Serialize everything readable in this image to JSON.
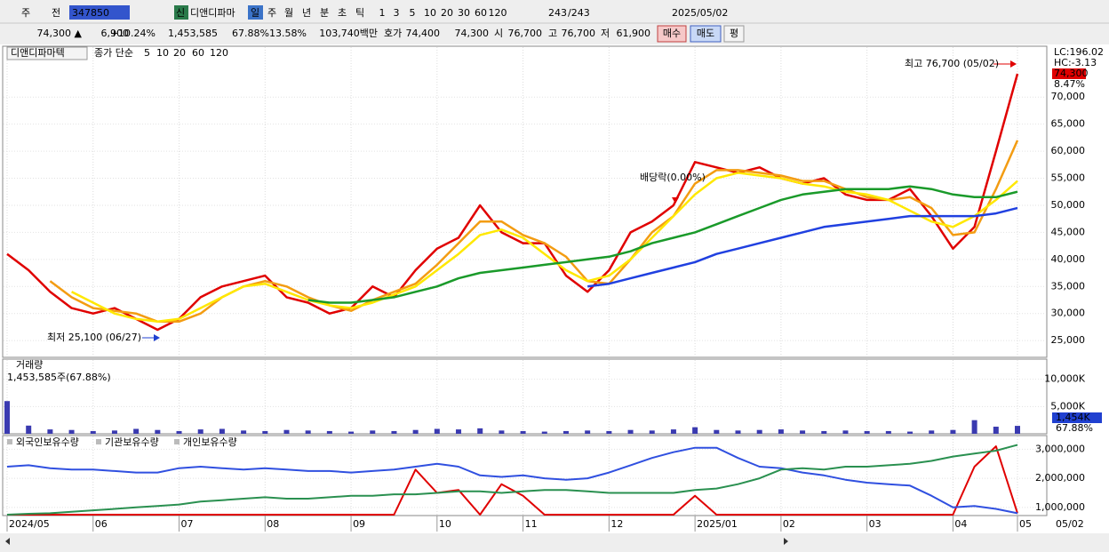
{
  "toolbar": {
    "market": "주",
    "range": "전",
    "code": "347850",
    "new": "신",
    "name": "디앤디파마",
    "periods": [
      "일",
      "주",
      "월",
      "년",
      "분",
      "초",
      "틱"
    ],
    "intervals": [
      "1",
      "3",
      "5",
      "10",
      "20",
      "30",
      "60",
      "120"
    ],
    "count": "243",
    "total": "/243",
    "date": "2025/05/02"
  },
  "quote": {
    "price": "74,300 ▲",
    "change": "6,900",
    "rate": "+10.24%",
    "volume": "1,453,585",
    "volume_rate": "67.88%",
    "turnover": "13.58%",
    "amount": "103,740백만",
    "ask_label": "호가",
    "ask": "74,400",
    "bid": "74,300",
    "open_label": "시",
    "open": "76,700",
    "high_label": "고",
    "high": "76,700",
    "low_label": "저",
    "low": "61,900",
    "buy": "매수",
    "sell": "매도",
    "avg": "평"
  },
  "chart_data": [
    {
      "type": "line",
      "title": "디앤디파마텍",
      "legend_title": "종가 단순",
      "series": [
        {
          "name": "5",
          "color": "#e00000",
          "values": [
            41000,
            38000,
            34000,
            31000,
            30000,
            31000,
            29000,
            27000,
            29000,
            33000,
            35000,
            36000,
            37000,
            33000,
            32000,
            30000,
            31000,
            35000,
            33000,
            38000,
            42000,
            44000,
            50000,
            45000,
            43000,
            43000,
            37000,
            34000,
            38000,
            45000,
            47000,
            50000,
            58000,
            57000,
            56000,
            57000,
            55000,
            54000,
            55000,
            52000,
            51000,
            51000,
            53000,
            48000,
            42000,
            46000,
            60000,
            74300
          ]
        },
        {
          "name": "10",
          "color": "#f39c12",
          "values": [
            null,
            null,
            36000,
            33000,
            31000,
            30500,
            30000,
            28500,
            28500,
            30000,
            33000,
            35000,
            36000,
            35000,
            33000,
            31500,
            30500,
            32500,
            34000,
            35500,
            39000,
            43000,
            47000,
            47000,
            44500,
            43000,
            40500,
            36000,
            35500,
            40000,
            45000,
            48000,
            54000,
            56500,
            56500,
            56000,
            55500,
            54500,
            54500,
            53000,
            51500,
            51000,
            51500,
            49500,
            44500,
            45000,
            53000,
            62000
          ]
        },
        {
          "name": "20",
          "color": "#ffe800",
          "values": [
            null,
            null,
            null,
            34000,
            32000,
            30000,
            29000,
            28500,
            29000,
            31000,
            33000,
            35000,
            35500,
            34000,
            32500,
            31500,
            31000,
            32000,
            33500,
            35000,
            38000,
            41000,
            44500,
            45500,
            44000,
            41000,
            38000,
            36000,
            37000,
            40000,
            44000,
            48000,
            52000,
            55000,
            56000,
            55500,
            55000,
            54000,
            53500,
            52500,
            52000,
            51000,
            49000,
            47000,
            46000,
            48000,
            51000,
            54500
          ]
        },
        {
          "name": "60",
          "color": "#1a9a2a",
          "values": [
            null,
            null,
            null,
            null,
            null,
            null,
            null,
            null,
            null,
            null,
            null,
            null,
            null,
            null,
            32500,
            32000,
            32000,
            32500,
            33000,
            34000,
            35000,
            36500,
            37500,
            38000,
            38500,
            39000,
            39500,
            40000,
            40500,
            41500,
            43000,
            44000,
            45000,
            46500,
            48000,
            49500,
            51000,
            52000,
            52500,
            53000,
            53000,
            53000,
            53500,
            53000,
            52000,
            51500,
            51500,
            52500
          ]
        },
        {
          "name": "120",
          "color": "#2040e0",
          "values": [
            null,
            null,
            null,
            null,
            null,
            null,
            null,
            null,
            null,
            null,
            null,
            null,
            null,
            null,
            null,
            null,
            null,
            null,
            null,
            null,
            null,
            null,
            null,
            null,
            null,
            null,
            null,
            35000,
            35500,
            36500,
            37500,
            38500,
            39500,
            41000,
            42000,
            43000,
            44000,
            45000,
            46000,
            46500,
            47000,
            47500,
            48000,
            48000,
            48000,
            48000,
            48500,
            49500
          ]
        }
      ],
      "ylim": [
        21900,
        79400
      ],
      "yticks": [
        {
          "value": 25000,
          "label": "25,000"
        },
        {
          "value": 30000,
          "label": "30,000"
        },
        {
          "value": 35000,
          "label": "35,000"
        },
        {
          "value": 40000,
          "label": "40,000"
        },
        {
          "value": 45000,
          "label": "45,000"
        },
        {
          "value": 50000,
          "label": "50,000"
        },
        {
          "value": 55000,
          "label": "55,000"
        },
        {
          "value": 60000,
          "label": "60,000"
        },
        {
          "value": 65000,
          "label": "65,000"
        },
        {
          "value": 70000,
          "label": "70,000"
        }
      ],
      "annotations": [
        "최고 76,700 (05/02)",
        "최저 25,100 (06/27)",
        "배당락(0.00%)"
      ],
      "indicators": [
        "LC:196.02",
        "HC:-3.13",
        "74,300",
        "8.47%"
      ]
    },
    {
      "type": "bar",
      "title": "거래량",
      "subtitle": "1,453,585주(67.88%)",
      "color": "#3a3ab0",
      "values": [
        6000,
        1500,
        800,
        700,
        500,
        600,
        900,
        700,
        500,
        800,
        900,
        600,
        500,
        700,
        600,
        500,
        400,
        600,
        500,
        700,
        900,
        800,
        1000,
        600,
        500,
        400,
        500,
        600,
        500,
        700,
        600,
        800,
        1200,
        700,
        600,
        700,
        800,
        600,
        500,
        600,
        500,
        500,
        400,
        600,
        700,
        2500,
        1300,
        1454
      ],
      "ylim": [
        0,
        13700
      ],
      "yticks": [
        {
          "value": 5000,
          "label": "5,000K"
        },
        {
          "value": 10000,
          "label": "10,000K"
        }
      ],
      "current": "1,454K",
      "current_rate": "67.88%"
    },
    {
      "type": "line",
      "categories": [
        "2024/05",
        null,
        null,
        null,
        "06",
        null,
        null,
        null,
        "07",
        null,
        null,
        null,
        "08",
        null,
        null,
        null,
        "09",
        null,
        null,
        null,
        "10",
        null,
        null,
        null,
        "11",
        null,
        null,
        null,
        "12",
        null,
        null,
        null,
        "2025/01",
        null,
        null,
        null,
        "02",
        null,
        null,
        null,
        "03",
        null,
        null,
        null,
        "04",
        null,
        null,
        "05"
      ],
      "series": [
        {
          "name": "외국인보유수량",
          "color": "#e00000",
          "values": [
            750000,
            750000,
            750000,
            750000,
            750000,
            750000,
            750000,
            750000,
            750000,
            750000,
            750000,
            750000,
            750000,
            750000,
            750000,
            750000,
            750000,
            750000,
            750000,
            2300000,
            1500000,
            1600000,
            750000,
            1800000,
            1400000,
            750000,
            750000,
            750000,
            750000,
            750000,
            750000,
            750000,
            1400000,
            750000,
            750000,
            750000,
            750000,
            750000,
            750000,
            750000,
            750000,
            750000,
            750000,
            750000,
            750000,
            2400000,
            3100000,
            800000
          ]
        },
        {
          "name": "기관보유수량",
          "color": "#3050e0",
          "values": [
            2400000,
            2450000,
            2350000,
            2300000,
            2300000,
            2250000,
            2200000,
            2200000,
            2350000,
            2400000,
            2350000,
            2300000,
            2350000,
            2300000,
            2250000,
            2250000,
            2200000,
            2250000,
            2300000,
            2400000,
            2500000,
            2400000,
            2100000,
            2050000,
            2100000,
            2000000,
            1950000,
            2000000,
            2200000,
            2450000,
            2700000,
            2900000,
            3050000,
            3050000,
            2700000,
            2400000,
            2350000,
            2200000,
            2100000,
            1950000,
            1850000,
            1800000,
            1750000,
            1400000,
            1000000,
            1050000,
            950000,
            800000
          ]
        },
        {
          "name": "개인보유수량",
          "color": "#2a9050",
          "values": [
            750000,
            780000,
            800000,
            850000,
            900000,
            950000,
            1000000,
            1050000,
            1100000,
            1200000,
            1250000,
            1300000,
            1350000,
            1300000,
            1300000,
            1350000,
            1400000,
            1400000,
            1450000,
            1450000,
            1500000,
            1550000,
            1550000,
            1500000,
            1550000,
            1600000,
            1600000,
            1550000,
            1500000,
            1500000,
            1500000,
            1500000,
            1600000,
            1650000,
            1800000,
            2000000,
            2300000,
            2350000,
            2300000,
            2400000,
            2400000,
            2450000,
            2500000,
            2600000,
            2750000,
            2850000,
            2950000,
            3150000
          ]
        }
      ],
      "ylim": [
        720000,
        3470000
      ],
      "yticks": [
        {
          "value": 1000000,
          "label": "1,000,000"
        },
        {
          "value": 2000000,
          "label": "2,000,000"
        },
        {
          "value": 3000000,
          "label": "3,000,000"
        }
      ],
      "last_date": "05/02"
    }
  ]
}
